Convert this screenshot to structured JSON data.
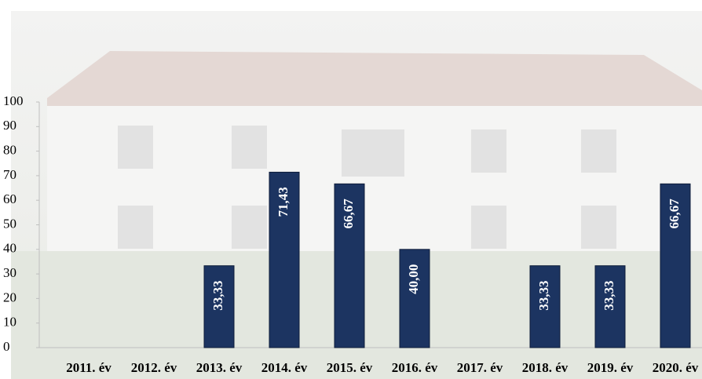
{
  "chart_data": {
    "type": "bar",
    "categories": [
      "2011. év",
      "2012. év",
      "2013. év",
      "2014. év",
      "2015. év",
      "2016. év",
      "2017. év",
      "2018. év",
      "2019. év",
      "2020. év"
    ],
    "values": [
      null,
      null,
      33.33,
      71.43,
      66.67,
      40.0,
      null,
      33.33,
      33.33,
      66.67
    ],
    "value_labels": [
      null,
      null,
      "33,33",
      "71,43",
      "66,67",
      "40,00",
      null,
      "33,33",
      "33,33",
      "66,67"
    ],
    "color": "#1c3461",
    "ylim": [
      0,
      100
    ],
    "yticks": [
      0,
      10,
      20,
      30,
      40,
      50,
      60,
      70,
      80,
      90,
      100
    ]
  }
}
